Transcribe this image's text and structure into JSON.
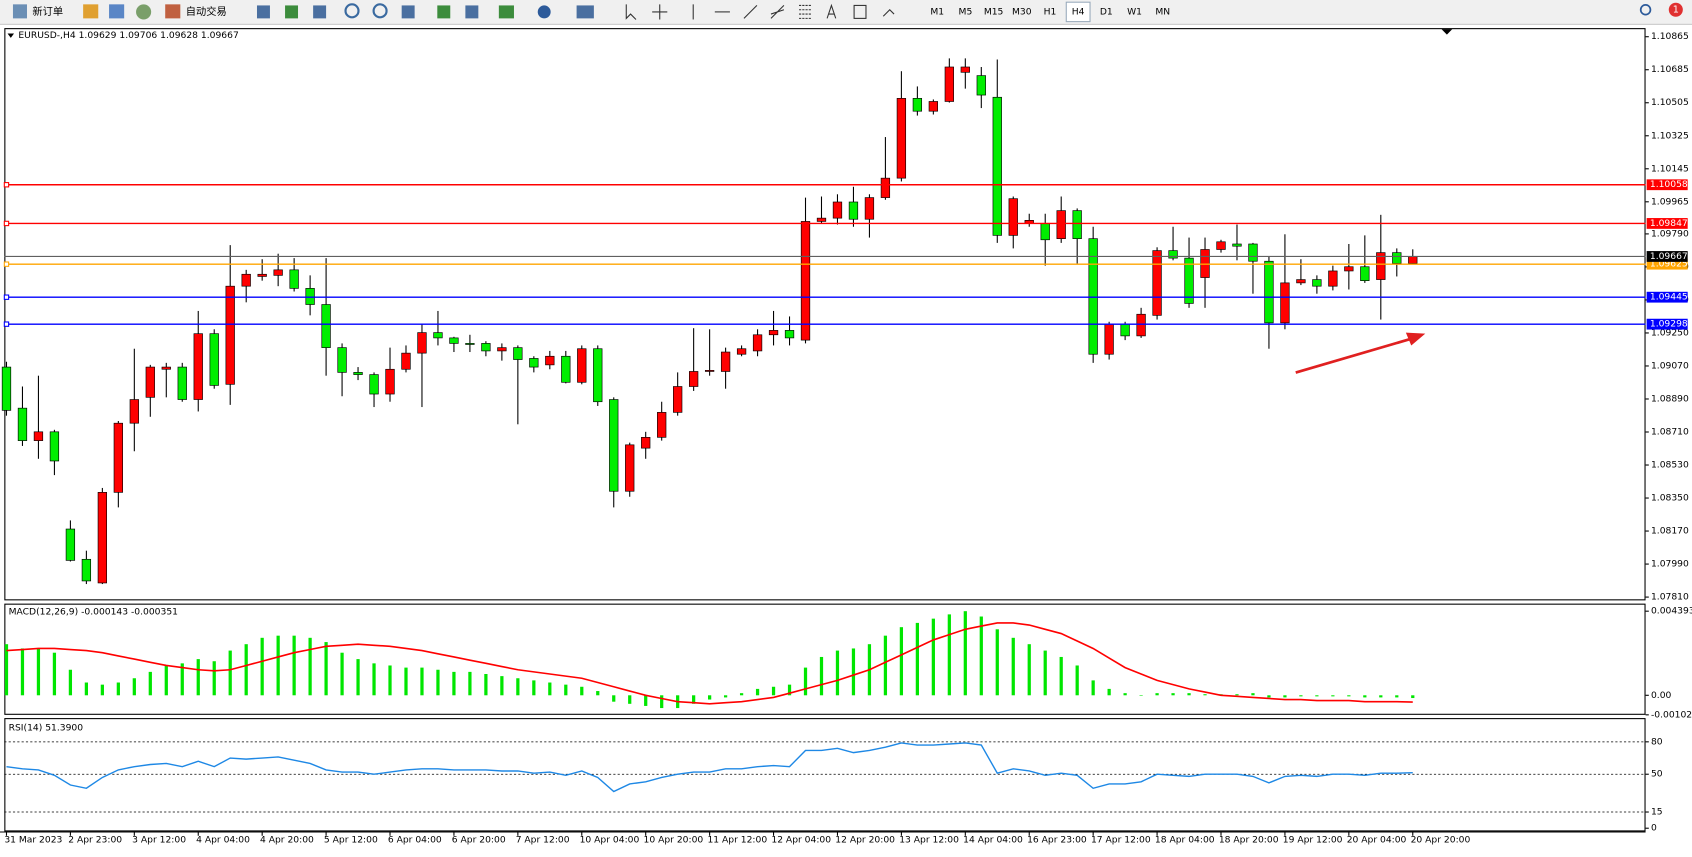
{
  "toolbar": {
    "buttons": [
      "新订单",
      "自动交易"
    ],
    "timeframes": [
      "M1",
      "M5",
      "M15",
      "M30",
      "H1",
      "H4",
      "D1",
      "W1",
      "MN"
    ],
    "active": "H4",
    "notifications": 1
  },
  "chart_data": [
    {
      "type": "candlestick",
      "title": "EURUSD-,H4  1.09629 1.09706 1.09628 1.09667",
      "categories": [
        "31 Mar 2023",
        null,
        null,
        null,
        "2 Apr 23:00",
        null,
        null,
        null,
        "3 Apr 12:00",
        null,
        null,
        null,
        "4 Apr 04:00",
        null,
        null,
        null,
        "4 Apr 20:00",
        null,
        null,
        null,
        "5 Apr 12:00",
        null,
        null,
        null,
        "6 Apr 04:00",
        null,
        null,
        null,
        "6 Apr 20:00",
        null,
        null,
        null,
        "7 Apr 12:00",
        null,
        null,
        null,
        "10 Apr 04:00",
        null,
        null,
        null,
        "10 Apr 20:00",
        null,
        null,
        null,
        "11 Apr 12:00",
        null,
        null,
        null,
        "12 Apr 04:00",
        null,
        null,
        null,
        "12 Apr 20:00",
        null,
        null,
        null,
        "13 Apr 12:00",
        null,
        null,
        null,
        "14 Apr 04:00",
        null,
        null,
        null,
        "16 Apr 23:00",
        null,
        null,
        null,
        "17 Apr 12:00",
        null,
        null,
        null,
        "18 Apr 04:00",
        null,
        null,
        null,
        "18 Apr 20:00",
        null,
        null,
        null,
        "19 Apr 12:00",
        null,
        null,
        null,
        "20 Apr 04:00",
        null,
        null,
        null,
        "20 Apr 20:00"
      ],
      "open": [
        1.09064,
        1.0884,
        1.08663,
        1.08711,
        1.08181,
        1.08016,
        1.07887,
        1.08381,
        1.08758,
        1.08899,
        1.09052,
        1.09064,
        1.08887,
        1.09246,
        1.0897,
        1.09505,
        1.09558,
        1.09564,
        1.09594,
        1.09493,
        1.09405,
        1.0917,
        1.09035,
        1.09023,
        1.08917,
        1.09052,
        1.0914,
        1.09252,
        1.09223,
        1.09193,
        1.09193,
        1.09152,
        1.0917,
        1.09111,
        1.09076,
        1.09123,
        1.08981,
        1.09164,
        1.08887,
        1.08387,
        1.08622,
        1.08681,
        1.08817,
        1.08958,
        1.0904,
        1.0904,
        1.09134,
        1.09152,
        1.0924,
        1.09264,
        1.09211,
        1.09858,
        1.09876,
        1.09964,
        1.0987,
        1.09988,
        1.10094,
        1.10529,
        1.10459,
        1.10512,
        1.10671,
        1.10653,
        1.10535,
        1.09782,
        1.09847,
        1.09847,
        1.09764,
        1.09917,
        1.09764,
        1.09134,
        1.09299,
        1.09234,
        1.09346,
        1.09699,
        1.09658,
        1.09552,
        1.09705,
        1.09735,
        1.09735,
        1.09641,
        1.09305,
        1.09523,
        1.09541,
        1.09505,
        1.09588,
        1.09611,
        1.09541,
        1.09688,
        1.09629
      ],
      "high": [
        1.09093,
        1.08958,
        1.09017,
        1.08722,
        1.08228,
        1.08063,
        1.08405,
        1.0877,
        1.09164,
        1.09076,
        1.09087,
        1.09087,
        1.0937,
        1.0927,
        1.09729,
        1.09594,
        1.09652,
        1.09682,
        1.09658,
        1.09564,
        1.09658,
        1.09193,
        1.09064,
        1.09035,
        1.0917,
        1.09182,
        1.09299,
        1.0937,
        1.09229,
        1.0924,
        1.09205,
        1.09193,
        1.09182,
        1.09123,
        1.09152,
        1.09152,
        1.09182,
        1.09182,
        1.08899,
        1.08652,
        1.08711,
        1.08875,
        1.09035,
        1.09276,
        1.0927,
        1.0917,
        1.09182,
        1.0927,
        1.0937,
        1.0934,
        1.09988,
        1.09994,
        1.10006,
        1.10047,
        1.10006,
        1.10318,
        1.10677,
        1.10594,
        1.10523,
        1.10747,
        1.10747,
        1.107,
        1.10741,
        1.09994,
        1.099,
        1.099,
        1.09994,
        1.09929,
        1.09829,
        1.09311,
        1.09311,
        1.09387,
        1.09717,
        1.09829,
        1.0977,
        1.0977,
        1.09758,
        1.09841,
        1.09741,
        1.09664,
        1.09788,
        1.09652,
        1.09564,
        1.09617,
        1.09735,
        1.09782,
        1.09894,
        1.09711,
        1.09706
      ],
      "low": [
        1.08799,
        1.08634,
        1.08564,
        1.08475,
        1.08004,
        1.07881,
        1.07881,
        1.08299,
        1.08605,
        1.08793,
        1.08899,
        1.08875,
        1.08822,
        1.08946,
        1.08858,
        1.09417,
        1.09535,
        1.09505,
        1.09476,
        1.09346,
        1.09017,
        1.08905,
        1.08993,
        1.08846,
        1.08875,
        1.09035,
        1.08846,
        1.09182,
        1.09146,
        1.09146,
        1.09123,
        1.09099,
        1.08752,
        1.09035,
        1.09052,
        1.08975,
        1.0897,
        1.08852,
        1.08299,
        1.08357,
        1.08564,
        1.08663,
        1.08799,
        1.08934,
        1.09017,
        1.08946,
        1.09123,
        1.09123,
        1.09182,
        1.09182,
        1.09193,
        1.09847,
        1.09841,
        1.09829,
        1.0977,
        1.09976,
        1.10076,
        1.10435,
        1.10441,
        1.10506,
        1.10582,
        1.10476,
        1.09741,
        1.09711,
        1.09829,
        1.09617,
        1.09741,
        1.09629,
        1.09087,
        1.09105,
        1.09211,
        1.09223,
        1.09323,
        1.09646,
        1.09387,
        1.09387,
        1.09688,
        1.09646,
        1.09464,
        1.09164,
        1.0927,
        1.09511,
        1.09464,
        1.09482,
        1.09487,
        1.09523,
        1.09323,
        1.09558,
        1.09628
      ],
      "close": [
        1.08828,
        1.08663,
        1.08711,
        1.08552,
        1.0801,
        1.07898,
        1.08381,
        1.08758,
        1.08887,
        1.09064,
        1.09064,
        1.08887,
        1.09246,
        1.08964,
        1.09505,
        1.0957,
        1.0957,
        1.09594,
        1.09493,
        1.09405,
        1.0917,
        1.09035,
        1.09023,
        1.08917,
        1.09052,
        1.0914,
        1.09252,
        1.09223,
        1.09193,
        1.09188,
        1.09152,
        1.0917,
        1.09105,
        1.09064,
        1.09123,
        1.08981,
        1.09164,
        1.08875,
        1.08387,
        1.0864,
        1.08681,
        1.08817,
        1.08958,
        1.0904,
        1.09046,
        1.09146,
        1.09164,
        1.0924,
        1.09264,
        1.09223,
        1.09858,
        1.09876,
        1.09964,
        1.0987,
        1.09988,
        1.10094,
        1.10529,
        1.10459,
        1.10512,
        1.107,
        1.107,
        1.10547,
        1.09782,
        1.09982,
        1.09864,
        1.09758,
        1.09917,
        1.09764,
        1.09134,
        1.09299,
        1.09234,
        1.09352,
        1.09699,
        1.09658,
        1.09411,
        1.09705,
        1.09747,
        1.09723,
        1.09641,
        1.09305,
        1.09523,
        1.09541,
        1.09505,
        1.09588,
        1.09611,
        1.09535,
        1.09688,
        1.09629,
        1.09667
      ],
      "up_color": "#ff0000",
      "down_color": "#00ee00",
      "ylim": [
        1.07792,
        1.10912
      ],
      "yticks": [
        1.10865,
        1.10685,
        1.10505,
        1.10325,
        1.10145,
        1.09965,
        {
          "value": 1.0979,
          "label": "1.09790"
        },
        {
          "value": 1.0961,
          "label": "1.09610"
        },
        {
          "value": 1.0943,
          "label": "1.09430"
        },
        {
          "value": 1.0925,
          "label": "1.09250"
        },
        {
          "value": 1.0907,
          "label": "1.09070"
        },
        {
          "value": 1.0889,
          "label": "1.08890"
        },
        {
          "value": 1.0871,
          "label": "1.08710"
        },
        {
          "value": 1.0853,
          "label": "1.08530"
        },
        {
          "value": 1.0835,
          "label": "1.08350"
        },
        {
          "value": 1.0817,
          "label": "1.08170"
        },
        {
          "value": 1.0799,
          "label": "1.07990"
        },
        {
          "value": 1.0781,
          "label": "1.07810"
        }
      ],
      "levels": [
        {
          "value": 1.10058,
          "color": "#ff0000"
        },
        {
          "value": 1.09847,
          "color": "#ff0000"
        },
        {
          "value": 1.09625,
          "color": "#ffa500"
        },
        {
          "value": 1.09445,
          "color": "#0000ff"
        },
        {
          "value": 1.09298,
          "color": "#0000ff"
        }
      ]
    },
    {
      "type": "macd",
      "title": "MACD(12,26,9) -0.000143 -0.000351",
      "series": [
        {
          "color": "#00e600",
          "values": [
            0.002669,
            0.002446,
            0.002446,
            0.002224,
            0.001334,
            0.000667,
            0.000556,
            0.000667,
            0.00089,
            0.001223,
            0.001557,
            0.001668,
            0.00189,
            0.001779,
            0.002335,
            0.002669,
            0.003002,
            0.003114,
            0.003114,
            0.003002,
            0.00278,
            0.002224,
            0.00189,
            0.001668,
            0.001557,
            0.001446,
            0.001446,
            0.001334,
            0.001223,
            0.001223,
            0.001112,
            0.001001,
            0.00089,
            0.000778,
            0.000667,
            0.000556,
            0.000445,
            0.000222,
            -0.000334,
            -0.000445,
            -0.000556,
            -0.000667,
            -0.000667,
            -0.000445,
            -0.000222,
            -0.000111,
            0.000111,
            0.000334,
            0.000445,
            0.000556,
            0.001446,
            0.002002,
            0.002335,
            0.002446,
            0.002669,
            0.003114,
            0.003558,
            0.003781,
            0.004003,
            0.004226,
            0.004393,
            0.004114,
            0.003447,
            0.003002,
            0.002669,
            0.002335,
            0.002002,
            0.001557,
            0.000778,
            0.000334,
            0.000111,
            0,
            0.000111,
            0.000111,
            0.000111,
            5.6e-05,
            5.6e-05,
            5.6e-05,
            0.000111,
            -0.000111,
            -0.000111,
            -5.6e-05,
            -5.6e-05,
            -5.6e-05,
            -5.6e-05,
            -0.000111,
            -0.000111,
            -0.000111,
            -0.000143
          ]
        },
        {
          "color": "#ff0000",
          "values": [
            0.002335,
            0.002391,
            0.002446,
            0.002446,
            0.002391,
            0.002335,
            0.002224,
            0.002057,
            0.00189,
            0.001724,
            0.001557,
            0.001446,
            0.001334,
            0.001279,
            0.001334,
            0.001557,
            0.001779,
            0.002002,
            0.002224,
            0.002391,
            0.002558,
            0.002613,
            0.002669,
            0.002613,
            0.002558,
            0.002446,
            0.002335,
            0.002168,
            0.002002,
            0.001835,
            0.001668,
            0.001501,
            0.001334,
            0.001223,
            0.001112,
            0.001001,
            0.00089,
            0.000667,
            0.000445,
            0.000222,
            0,
            -0.000167,
            -0.000334,
            -0.000389,
            -0.000445,
            -0.000389,
            -0.000334,
            -0.000222,
            -0.000111,
            0.000111,
            0.000334,
            0.000556,
            0.000778,
            0.001056,
            0.001334,
            0.001724,
            0.002113,
            0.002502,
            0.002891,
            0.003169,
            0.003447,
            0.003614,
            0.003781,
            0.003781,
            0.00367,
            0.003447,
            0.003225,
            0.002836,
            0.002446,
            0.001946,
            0.001446,
            0.001112,
            0.000778,
            0.000556,
            0.000334,
            0.000167,
            0,
            -5.6e-05,
            -0.000111,
            -0.000167,
            -0.000222,
            -0.000222,
            -0.000278,
            -0.000278,
            -0.000278,
            -0.000334,
            -0.000334,
            -0.000334,
            -0.000351
          ]
        }
      ],
      "ylim": [
        -0.001021,
        0.004393
      ],
      "yticks": [
        0.004393,
        {
          "value": 0,
          "label": "0.00"
        },
        -0.001021
      ]
    },
    {
      "type": "rsi",
      "title": "RSI(14) 51.3900",
      "color": "#1e88e5",
      "values": [
        57,
        55,
        54,
        49,
        40,
        37,
        47,
        54,
        57,
        59,
        60,
        57,
        62,
        57,
        65,
        64,
        65,
        66,
        63,
        60,
        54,
        52,
        52,
        50,
        52,
        54,
        55,
        55,
        54,
        54,
        54,
        53,
        53,
        51,
        52,
        49,
        53,
        47,
        34,
        41,
        43,
        47,
        50,
        52,
        52,
        55,
        55,
        57,
        58,
        57,
        72,
        72,
        74,
        70,
        72,
        75,
        79,
        77,
        77,
        78,
        79,
        77,
        51,
        55,
        53,
        49,
        51,
        49,
        37,
        41,
        41,
        43,
        50,
        49,
        48,
        50,
        50,
        50,
        48,
        42,
        48,
        49,
        48,
        50,
        50,
        49,
        51,
        51,
        51.39
      ],
      "ylim": [
        0,
        100
      ],
      "yticks": [
        80,
        50,
        15,
        0
      ],
      "levels": [
        80,
        50,
        15
      ]
    }
  ]
}
